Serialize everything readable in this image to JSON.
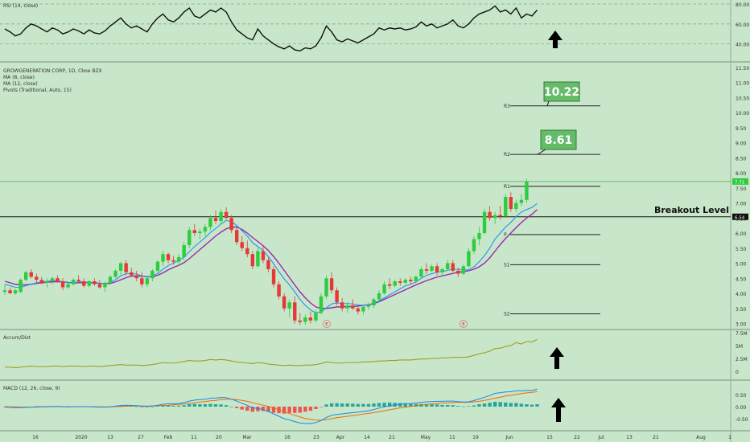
{
  "colors": {
    "background": "#c8e6c9",
    "up": "#2ecc40",
    "down": "#e53935",
    "ma8": "#2196f3",
    "ma12": "#9c27b0",
    "rsi": "#111111",
    "accum": "#9e9d24",
    "macd_line": "#1e88e5",
    "signal_line": "#ef6c00",
    "hist_pos": "#26a69a",
    "hist_neg": "#ef5350",
    "annot_box": "#66bb6a",
    "arrow": "#000000"
  },
  "rsi_panel": {
    "label": "RSI (14, close)",
    "ticks": [
      "80.00",
      "60.00",
      "40.00"
    ]
  },
  "main_panel": {
    "legend": [
      "GROWGENERATION CORP, 1D, Cboe BZX",
      "MA (8, close)",
      "MA (12, close)",
      "Pivots (Traditional, Auto, 15)"
    ],
    "ticks": [
      "11.50",
      "11.00",
      "10.50",
      "10.00",
      "9.50",
      "9.00",
      "8.50",
      "8.00",
      "7.50",
      "7.00",
      "6.50",
      "6.00",
      "5.50",
      "5.00",
      "4.50",
      "4.00",
      "3.50",
      "3.00"
    ],
    "pivots": [
      {
        "name": "R3",
        "value": 10.22
      },
      {
        "name": "R2",
        "value": 8.61
      },
      {
        "name": "R1",
        "value": 7.55
      },
      {
        "name": "P",
        "value": 5.95
      },
      {
        "name": "S1",
        "value": 4.95
      },
      {
        "name": "S2",
        "value": 3.32
      }
    ],
    "annotations": [
      "10.22",
      "8.61"
    ],
    "breakout_label": "Breakout Level",
    "breakout_price_tag": "6.54",
    "current_price_tag": "7.71",
    "earnings_markers": [
      "E",
      "E"
    ]
  },
  "accum_panel": {
    "label": "Accum/Dist",
    "ticks": [
      "7.5M",
      "5M",
      "2.5M",
      "0"
    ]
  },
  "macd_panel": {
    "label": "MACD (12, 26, close, 9)",
    "ticks": [
      "0.50",
      "0.00",
      "-0.50"
    ]
  },
  "x_axis": {
    "ticks": [
      "16",
      "2020",
      "13",
      "27",
      "Feb",
      "11",
      "20",
      "Mar",
      "16",
      "23",
      "Apr",
      "14",
      "21",
      "May",
      "11",
      "19",
      "Jun",
      "15",
      "22",
      "Jul",
      "13",
      "21",
      "Aug",
      "1"
    ]
  },
  "chart_data": {
    "type": "candlestick",
    "title": "GROWGENERATION CORP, 1D, Cboe BZX",
    "ylim": [
      2.8,
      11.9
    ],
    "candles": [
      {
        "o": 4.05,
        "h": 4.3,
        "l": 3.95,
        "c": 4.1
      },
      {
        "o": 4.1,
        "h": 4.2,
        "l": 3.98,
        "c": 4.0
      },
      {
        "o": 4.0,
        "h": 4.15,
        "l": 3.95,
        "c": 4.1
      },
      {
        "o": 4.05,
        "h": 4.5,
        "l": 4.0,
        "c": 4.45
      },
      {
        "o": 4.45,
        "h": 4.75,
        "l": 4.4,
        "c": 4.7
      },
      {
        "o": 4.7,
        "h": 4.8,
        "l": 4.5,
        "c": 4.55
      },
      {
        "o": 4.55,
        "h": 4.65,
        "l": 4.35,
        "c": 4.45
      },
      {
        "o": 4.45,
        "h": 4.55,
        "l": 4.3,
        "c": 4.35
      },
      {
        "o": 4.35,
        "h": 4.5,
        "l": 4.2,
        "c": 4.4
      },
      {
        "o": 4.4,
        "h": 4.55,
        "l": 4.3,
        "c": 4.5
      },
      {
        "o": 4.5,
        "h": 4.6,
        "l": 4.35,
        "c": 4.4
      },
      {
        "o": 4.4,
        "h": 4.5,
        "l": 4.1,
        "c": 4.2
      },
      {
        "o": 4.2,
        "h": 4.35,
        "l": 4.15,
        "c": 4.3
      },
      {
        "o": 4.3,
        "h": 4.5,
        "l": 4.25,
        "c": 4.45
      },
      {
        "o": 4.45,
        "h": 4.6,
        "l": 4.35,
        "c": 4.4
      },
      {
        "o": 4.4,
        "h": 4.5,
        "l": 4.2,
        "c": 4.25
      },
      {
        "o": 4.25,
        "h": 4.45,
        "l": 4.2,
        "c": 4.4
      },
      {
        "o": 4.4,
        "h": 4.5,
        "l": 4.25,
        "c": 4.3
      },
      {
        "o": 4.3,
        "h": 4.45,
        "l": 4.15,
        "c": 4.2
      },
      {
        "o": 4.2,
        "h": 4.4,
        "l": 4.05,
        "c": 4.35
      },
      {
        "o": 4.35,
        "h": 4.6,
        "l": 4.3,
        "c": 4.55
      },
      {
        "o": 4.55,
        "h": 4.8,
        "l": 4.5,
        "c": 4.75
      },
      {
        "o": 4.75,
        "h": 5.05,
        "l": 4.6,
        "c": 5.0
      },
      {
        "o": 5.0,
        "h": 5.1,
        "l": 4.6,
        "c": 4.7
      },
      {
        "o": 4.7,
        "h": 4.85,
        "l": 4.55,
        "c": 4.6
      },
      {
        "o": 4.6,
        "h": 4.75,
        "l": 4.4,
        "c": 4.5
      },
      {
        "o": 4.5,
        "h": 4.7,
        "l": 4.2,
        "c": 4.3
      },
      {
        "o": 4.3,
        "h": 4.55,
        "l": 4.2,
        "c": 4.5
      },
      {
        "o": 4.5,
        "h": 4.8,
        "l": 4.4,
        "c": 4.75
      },
      {
        "o": 4.75,
        "h": 5.1,
        "l": 4.7,
        "c": 5.05
      },
      {
        "o": 5.05,
        "h": 5.4,
        "l": 4.9,
        "c": 5.3
      },
      {
        "o": 5.3,
        "h": 5.35,
        "l": 5.0,
        "c": 5.1
      },
      {
        "o": 5.1,
        "h": 5.25,
        "l": 4.95,
        "c": 5.05
      },
      {
        "o": 5.05,
        "h": 5.3,
        "l": 4.9,
        "c": 5.2
      },
      {
        "o": 5.2,
        "h": 5.7,
        "l": 5.1,
        "c": 5.6
      },
      {
        "o": 5.6,
        "h": 6.2,
        "l": 5.5,
        "c": 6.1
      },
      {
        "o": 6.1,
        "h": 6.3,
        "l": 5.9,
        "c": 6.0
      },
      {
        "o": 6.0,
        "h": 6.15,
        "l": 5.8,
        "c": 6.05
      },
      {
        "o": 6.05,
        "h": 6.3,
        "l": 5.9,
        "c": 6.2
      },
      {
        "o": 6.2,
        "h": 6.6,
        "l": 6.1,
        "c": 6.5
      },
      {
        "o": 6.5,
        "h": 6.75,
        "l": 6.3,
        "c": 6.4
      },
      {
        "o": 6.4,
        "h": 6.8,
        "l": 6.3,
        "c": 6.7
      },
      {
        "o": 6.7,
        "h": 6.85,
        "l": 6.45,
        "c": 6.5
      },
      {
        "o": 6.5,
        "h": 6.6,
        "l": 6.0,
        "c": 6.1
      },
      {
        "o": 6.1,
        "h": 6.2,
        "l": 5.6,
        "c": 5.7
      },
      {
        "o": 5.7,
        "h": 5.9,
        "l": 5.4,
        "c": 5.5
      },
      {
        "o": 5.5,
        "h": 5.75,
        "l": 5.2,
        "c": 5.3
      },
      {
        "o": 5.3,
        "h": 5.4,
        "l": 4.8,
        "c": 4.9
      },
      {
        "o": 4.9,
        "h": 5.5,
        "l": 4.85,
        "c": 5.4
      },
      {
        "o": 5.4,
        "h": 5.6,
        "l": 5.0,
        "c": 5.1
      },
      {
        "o": 5.1,
        "h": 5.2,
        "l": 4.7,
        "c": 4.8
      },
      {
        "o": 4.8,
        "h": 4.9,
        "l": 4.2,
        "c": 4.3
      },
      {
        "o": 4.3,
        "h": 4.4,
        "l": 3.8,
        "c": 3.9
      },
      {
        "o": 3.9,
        "h": 4.0,
        "l": 3.4,
        "c": 3.5
      },
      {
        "o": 3.5,
        "h": 3.8,
        "l": 3.2,
        "c": 3.7
      },
      {
        "o": 3.7,
        "h": 3.9,
        "l": 3.0,
        "c": 3.1
      },
      {
        "o": 3.1,
        "h": 3.35,
        "l": 2.95,
        "c": 3.05
      },
      {
        "o": 3.05,
        "h": 3.3,
        "l": 2.95,
        "c": 3.2
      },
      {
        "o": 3.2,
        "h": 3.4,
        "l": 3.0,
        "c": 3.1
      },
      {
        "o": 3.1,
        "h": 3.45,
        "l": 3.05,
        "c": 3.35
      },
      {
        "o": 3.35,
        "h": 4.0,
        "l": 3.3,
        "c": 3.9
      },
      {
        "o": 3.9,
        "h": 4.6,
        "l": 3.8,
        "c": 4.5
      },
      {
        "o": 4.5,
        "h": 4.7,
        "l": 4.0,
        "c": 4.1
      },
      {
        "o": 4.1,
        "h": 4.2,
        "l": 3.6,
        "c": 3.7
      },
      {
        "o": 3.7,
        "h": 3.85,
        "l": 3.4,
        "c": 3.5
      },
      {
        "o": 3.5,
        "h": 3.7,
        "l": 3.35,
        "c": 3.6
      },
      {
        "o": 3.6,
        "h": 3.8,
        "l": 3.45,
        "c": 3.5
      },
      {
        "o": 3.5,
        "h": 3.6,
        "l": 3.3,
        "c": 3.4
      },
      {
        "o": 3.4,
        "h": 3.6,
        "l": 3.3,
        "c": 3.55
      },
      {
        "o": 3.55,
        "h": 3.7,
        "l": 3.45,
        "c": 3.6
      },
      {
        "o": 3.6,
        "h": 3.85,
        "l": 3.5,
        "c": 3.8
      },
      {
        "o": 3.8,
        "h": 4.1,
        "l": 3.7,
        "c": 4.0
      },
      {
        "o": 4.0,
        "h": 4.4,
        "l": 3.95,
        "c": 4.3
      },
      {
        "o": 4.3,
        "h": 4.5,
        "l": 4.15,
        "c": 4.25
      },
      {
        "o": 4.25,
        "h": 4.45,
        "l": 4.2,
        "c": 4.4
      },
      {
        "o": 4.4,
        "h": 4.5,
        "l": 4.25,
        "c": 4.35
      },
      {
        "o": 4.35,
        "h": 4.5,
        "l": 4.3,
        "c": 4.45
      },
      {
        "o": 4.45,
        "h": 4.55,
        "l": 4.3,
        "c": 4.4
      },
      {
        "o": 4.4,
        "h": 4.6,
        "l": 4.35,
        "c": 4.55
      },
      {
        "o": 4.55,
        "h": 4.9,
        "l": 4.5,
        "c": 4.8
      },
      {
        "o": 4.8,
        "h": 5.0,
        "l": 4.65,
        "c": 4.75
      },
      {
        "o": 4.75,
        "h": 4.95,
        "l": 4.7,
        "c": 4.9
      },
      {
        "o": 4.9,
        "h": 5.0,
        "l": 4.6,
        "c": 4.7
      },
      {
        "o": 4.7,
        "h": 4.85,
        "l": 4.55,
        "c": 4.8
      },
      {
        "o": 4.8,
        "h": 5.1,
        "l": 4.75,
        "c": 5.0
      },
      {
        "o": 5.0,
        "h": 5.1,
        "l": 4.7,
        "c": 4.75
      },
      {
        "o": 4.75,
        "h": 4.85,
        "l": 4.55,
        "c": 4.65
      },
      {
        "o": 4.65,
        "h": 4.95,
        "l": 4.6,
        "c": 4.9
      },
      {
        "o": 4.9,
        "h": 5.5,
        "l": 4.85,
        "c": 5.4
      },
      {
        "o": 5.4,
        "h": 5.9,
        "l": 5.3,
        "c": 5.8
      },
      {
        "o": 5.8,
        "h": 6.2,
        "l": 5.6,
        "c": 6.0
      },
      {
        "o": 6.0,
        "h": 6.8,
        "l": 5.95,
        "c": 6.7
      },
      {
        "o": 6.7,
        "h": 6.9,
        "l": 6.4,
        "c": 6.5
      },
      {
        "o": 6.5,
        "h": 6.7,
        "l": 6.3,
        "c": 6.6
      },
      {
        "o": 6.6,
        "h": 6.9,
        "l": 6.45,
        "c": 6.55
      },
      {
        "o": 6.55,
        "h": 7.3,
        "l": 6.5,
        "c": 7.2
      },
      {
        "o": 7.2,
        "h": 7.35,
        "l": 6.7,
        "c": 6.8
      },
      {
        "o": 6.8,
        "h": 7.1,
        "l": 6.7,
        "c": 7.0
      },
      {
        "o": 7.0,
        "h": 7.3,
        "l": 6.9,
        "c": 7.1
      },
      {
        "o": 7.1,
        "h": 7.8,
        "l": 7.0,
        "c": 7.71
      }
    ],
    "ma8": [
      4.3,
      4.25,
      4.2,
      4.2,
      4.25,
      4.3,
      4.35,
      4.38,
      4.4,
      4.42,
      4.42,
      4.38,
      4.35,
      4.35,
      4.38,
      4.38,
      4.36,
      4.35,
      4.32,
      4.32,
      4.36,
      4.45,
      4.58,
      4.65,
      4.66,
      4.64,
      4.58,
      4.54,
      4.57,
      4.66,
      4.8,
      4.92,
      5.0,
      5.08,
      5.2,
      5.38,
      5.55,
      5.7,
      5.85,
      6.02,
      6.15,
      6.3,
      6.42,
      6.38,
      6.25,
      6.08,
      5.9,
      5.68,
      5.55,
      5.42,
      5.22,
      4.98,
      4.72,
      4.48,
      4.28,
      4.05,
      3.8,
      3.6,
      3.45,
      3.35,
      3.38,
      3.52,
      3.65,
      3.68,
      3.66,
      3.66,
      3.65,
      3.62,
      3.6,
      3.62,
      3.68,
      3.75,
      3.85,
      3.95,
      4.05,
      4.15,
      4.25,
      4.3,
      4.38,
      4.5,
      4.6,
      4.65,
      4.7,
      4.72,
      4.76,
      4.8,
      4.8,
      4.78,
      4.78,
      4.88,
      5.05,
      5.25,
      5.5,
      5.8,
      6.0,
      6.2,
      6.35,
      6.55,
      6.7,
      6.78,
      6.85,
      6.98
    ],
    "ma12": [
      4.4,
      4.35,
      4.3,
      4.28,
      4.28,
      4.3,
      4.33,
      4.35,
      4.37,
      4.38,
      4.39,
      4.38,
      4.36,
      4.35,
      4.35,
      4.36,
      4.36,
      4.35,
      4.33,
      4.32,
      4.33,
      4.38,
      4.45,
      4.52,
      4.57,
      4.58,
      4.57,
      4.55,
      4.55,
      4.6,
      4.68,
      4.78,
      4.86,
      4.93,
      5.02,
      5.15,
      5.3,
      5.45,
      5.6,
      5.75,
      5.9,
      6.03,
      6.14,
      6.2,
      6.2,
      6.12,
      6.0,
      5.85,
      5.72,
      5.58,
      5.42,
      5.22,
      5.0,
      4.76,
      4.52,
      4.28,
      4.05,
      3.85,
      3.68,
      3.55,
      3.5,
      3.5,
      3.52,
      3.55,
      3.55,
      3.56,
      3.56,
      3.58,
      3.6,
      3.62,
      3.66,
      3.72,
      3.8,
      3.88,
      3.96,
      4.04,
      4.12,
      4.2,
      4.28,
      4.35,
      4.42,
      4.48,
      4.54,
      4.58,
      4.62,
      4.66,
      4.7,
      4.72,
      4.75,
      4.8,
      4.88,
      5.0,
      5.18,
      5.4,
      5.62,
      5.82,
      6.0,
      6.18,
      6.35,
      6.5,
      6.62,
      6.78
    ],
    "rsi": [
      55,
      52,
      48,
      50,
      56,
      60,
      58,
      55,
      52,
      56,
      54,
      50,
      52,
      55,
      53,
      50,
      54,
      51,
      50,
      53,
      58,
      62,
      66,
      60,
      56,
      58,
      55,
      52,
      60,
      66,
      70,
      64,
      62,
      66,
      72,
      76,
      68,
      66,
      70,
      74,
      72,
      76,
      72,
      62,
      54,
      50,
      46,
      44,
      55,
      48,
      44,
      40,
      37,
      35,
      38,
      34,
      33,
      36,
      35,
      38,
      46,
      58,
      52,
      44,
      42,
      45,
      43,
      41,
      44,
      47,
      50,
      56,
      54,
      56,
      55,
      56,
      54,
      55,
      57,
      62,
      58,
      60,
      56,
      58,
      60,
      64,
      58,
      56,
      60,
      66,
      70,
      72,
      74,
      78,
      72,
      74,
      70,
      76,
      66,
      70,
      68,
      74
    ],
    "accum": [
      0.8,
      0.8,
      0.7,
      0.8,
      0.9,
      1.0,
      0.9,
      0.9,
      0.9,
      1.0,
      1.0,
      0.9,
      1.0,
      1.0,
      1.0,
      0.9,
      1.0,
      1.0,
      0.9,
      1.0,
      1.1,
      1.2,
      1.3,
      1.2,
      1.2,
      1.2,
      1.1,
      1.2,
      1.3,
      1.5,
      1.7,
      1.6,
      1.6,
      1.7,
      1.9,
      2.1,
      2.0,
      2.0,
      2.1,
      2.3,
      2.2,
      2.3,
      2.2,
      2.0,
      1.8,
      1.7,
      1.6,
      1.5,
      1.7,
      1.6,
      1.4,
      1.3,
      1.2,
      1.1,
      1.2,
      1.1,
      1.1,
      1.2,
      1.2,
      1.3,
      1.5,
      1.8,
      1.7,
      1.6,
      1.6,
      1.7,
      1.7,
      1.7,
      1.8,
      1.8,
      1.9,
      2.0,
      2.0,
      2.1,
      2.1,
      2.2,
      2.2,
      2.2,
      2.3,
      2.4,
      2.4,
      2.5,
      2.5,
      2.6,
      2.6,
      2.7,
      2.7,
      2.7,
      2.8,
      3.1,
      3.4,
      3.6,
      3.9,
      4.4,
      4.5,
      4.8,
      5.0,
      5.6,
      5.3,
      5.8,
      5.7,
      6.2
    ],
    "macd": [
      -0.02,
      -0.03,
      -0.04,
      -0.04,
      -0.03,
      -0.02,
      -0.01,
      0.0,
      0.0,
      0.01,
      0.01,
      0.0,
      -0.01,
      0.0,
      0.0,
      0.0,
      0.0,
      -0.01,
      -0.02,
      -0.02,
      -0.01,
      0.02,
      0.05,
      0.06,
      0.05,
      0.04,
      0.02,
      0.01,
      0.03,
      0.06,
      0.1,
      0.12,
      0.12,
      0.13,
      0.17,
      0.23,
      0.27,
      0.29,
      0.31,
      0.35,
      0.36,
      0.38,
      0.37,
      0.31,
      0.23,
      0.14,
      0.05,
      -0.05,
      -0.08,
      -0.12,
      -0.2,
      -0.3,
      -0.4,
      -0.5,
      -0.55,
      -0.62,
      -0.68,
      -0.7,
      -0.7,
      -0.66,
      -0.58,
      -0.45,
      -0.36,
      -0.32,
      -0.3,
      -0.27,
      -0.25,
      -0.23,
      -0.2,
      -0.17,
      -0.12,
      -0.06,
      -0.01,
      0.04,
      0.07,
      0.1,
      0.12,
      0.13,
      0.15,
      0.18,
      0.2,
      0.21,
      0.22,
      0.22,
      0.23,
      0.23,
      0.21,
      0.19,
      0.2,
      0.25,
      0.32,
      0.39,
      0.46,
      0.55,
      0.58,
      0.61,
      0.62,
      0.66,
      0.66,
      0.67,
      0.67,
      0.72
    ],
    "signal": [
      0.0,
      -0.01,
      -0.01,
      -0.02,
      -0.02,
      -0.02,
      -0.02,
      -0.01,
      -0.01,
      0.0,
      0.0,
      0.0,
      0.0,
      0.0,
      0.0,
      0.0,
      0.0,
      0.0,
      -0.01,
      -0.01,
      -0.01,
      0.0,
      0.01,
      0.02,
      0.03,
      0.03,
      0.03,
      0.02,
      0.03,
      0.04,
      0.05,
      0.06,
      0.08,
      0.09,
      0.11,
      0.13,
      0.16,
      0.19,
      0.21,
      0.24,
      0.26,
      0.29,
      0.31,
      0.31,
      0.29,
      0.26,
      0.22,
      0.16,
      0.11,
      0.06,
      0.01,
      -0.05,
      -0.13,
      -0.21,
      -0.29,
      -0.36,
      -0.43,
      -0.49,
      -0.53,
      -0.56,
      -0.56,
      -0.54,
      -0.5,
      -0.46,
      -0.43,
      -0.4,
      -0.37,
      -0.34,
      -0.31,
      -0.28,
      -0.25,
      -0.21,
      -0.17,
      -0.13,
      -0.09,
      -0.05,
      -0.02,
      0.01,
      0.04,
      0.07,
      0.09,
      0.11,
      0.13,
      0.15,
      0.16,
      0.17,
      0.18,
      0.18,
      0.18,
      0.2,
      0.22,
      0.26,
      0.3,
      0.35,
      0.39,
      0.44,
      0.47,
      0.51,
      0.54,
      0.57,
      0.59,
      0.62
    ]
  }
}
